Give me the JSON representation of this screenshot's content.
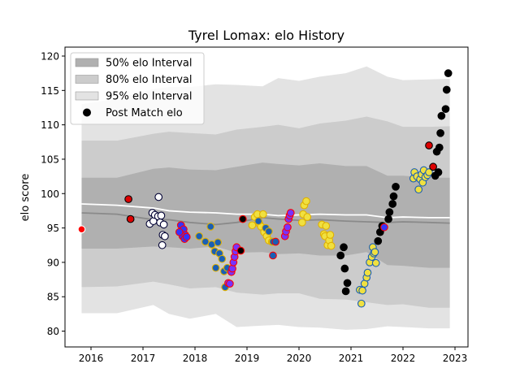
{
  "chart_data": {
    "type": "scatter",
    "title": "Tyrel Lomax: elo History",
    "xlabel": "",
    "ylabel": "elo score",
    "xlim": [
      2015.5,
      2023.25
    ],
    "ylim": [
      77.7,
      121.3
    ],
    "x_ticks": [
      2016,
      2017,
      2018,
      2019,
      2020,
      2021,
      2022,
      2023
    ],
    "y_ticks": [
      80,
      85,
      90,
      95,
      100,
      105,
      110,
      115,
      120
    ],
    "grid": false,
    "legend": {
      "placement": "top-left",
      "entries": [
        {
          "label": "50% elo Interval",
          "swatch": "band50"
        },
        {
          "label": "80% elo Interval",
          "swatch": "band80"
        },
        {
          "label": "95% elo Interval",
          "swatch": "band95"
        },
        {
          "label": "Post Match elo",
          "swatch": "dot"
        }
      ]
    },
    "colors": {
      "band95": "#e3e3e3",
      "band80": "#cccccc",
      "band50": "#b0b0b0",
      "mean_line": "#ffffff",
      "median_line": "#8a8a8a"
    },
    "bands": {
      "x": [
        2015.82,
        2016.5,
        2017.2,
        2017.5,
        2017.9,
        2018.4,
        2018.8,
        2019.3,
        2019.6,
        2020.0,
        2020.4,
        2020.9,
        2021.3,
        2021.7,
        2022.0,
        2022.5,
        2022.9
      ],
      "p95_hi": [
        113.0,
        113.8,
        115.2,
        115.5,
        115.5,
        115.9,
        115.8,
        115.6,
        116.8,
        116.4,
        117.0,
        117.5,
        118.5,
        117.0,
        116.5,
        116.6,
        116.7
      ],
      "p80_hi": [
        107.7,
        107.7,
        108.7,
        109.0,
        108.8,
        108.6,
        109.3,
        109.7,
        110.0,
        109.5,
        110.2,
        110.6,
        111.2,
        110.5,
        109.7,
        109.7,
        109.8
      ],
      "p50_hi": [
        102.3,
        102.3,
        103.6,
        103.8,
        103.5,
        103.4,
        103.9,
        104.5,
        104.3,
        104.1,
        104.4,
        104.0,
        104.0,
        102.6,
        102.6,
        102.3,
        102.3
      ],
      "p50_lo": [
        92.0,
        92.0,
        92.3,
        92.2,
        92.0,
        92.3,
        91.4,
        91.5,
        91.2,
        91.3,
        91.0,
        91.0,
        91.5,
        89.6,
        89.5,
        89.2,
        89.2
      ],
      "p80_lo": [
        86.4,
        86.5,
        87.2,
        86.8,
        86.2,
        86.4,
        85.6,
        85.3,
        85.5,
        85.5,
        84.7,
        84.6,
        84.2,
        83.8,
        83.9,
        83.4,
        83.4
      ],
      "p95_lo": [
        82.6,
        82.6,
        83.8,
        82.5,
        81.8,
        82.5,
        80.6,
        80.8,
        80.9,
        80.6,
        80.5,
        80.2,
        80.3,
        80.7,
        80.6,
        80.4,
        80.4
      ],
      "mean": [
        98.5,
        98.3,
        97.9,
        97.5,
        97.3,
        97.2,
        97.0,
        97.0,
        96.8,
        96.9,
        97.0,
        96.9,
        96.9,
        96.5,
        96.6,
        96.5,
        96.5
      ],
      "median": [
        97.2,
        97.0,
        96.2,
        96.2,
        95.8,
        95.5,
        95.8,
        96.5,
        96.3,
        96.1,
        96.2,
        96.0,
        95.9,
        95.8,
        95.9,
        95.8,
        95.7
      ]
    },
    "series": [
      {
        "fill": "#ff0000",
        "edge": "#ffffff",
        "points": [
          [
            2015.82,
            94.8
          ]
        ]
      },
      {
        "fill": "#dd0000",
        "edge": "#000000",
        "points": [
          [
            2016.72,
            99.2
          ],
          [
            2016.76,
            96.3
          ]
        ]
      },
      {
        "fill": "#ffffff",
        "edge": "#000033",
        "points": [
          [
            2017.3,
            99.5
          ],
          [
            2017.13,
            95.6
          ],
          [
            2017.2,
            96.0
          ],
          [
            2017.18,
            97.2
          ],
          [
            2017.23,
            96.9
          ],
          [
            2017.29,
            96.7
          ],
          [
            2017.35,
            96.8
          ],
          [
            2017.33,
            95.8
          ],
          [
            2017.4,
            95.5
          ],
          [
            2017.38,
            94.0
          ],
          [
            2017.42,
            93.8
          ],
          [
            2017.37,
            92.5
          ]
        ]
      },
      {
        "fill": "#3333ff",
        "edge": "#ff0000",
        "points": [
          [
            2017.73,
            95.4
          ],
          [
            2017.75,
            94.6
          ],
          [
            2017.78,
            94.8
          ],
          [
            2017.81,
            94.0
          ],
          [
            2017.76,
            93.8
          ],
          [
            2017.8,
            93.4
          ],
          [
            2017.84,
            93.7
          ],
          [
            2017.7,
            94.4
          ]
        ]
      },
      {
        "fill": "#1a5fb4",
        "edge": "#e0b000",
        "points": [
          [
            2018.08,
            93.8
          ],
          [
            2018.2,
            93.0
          ],
          [
            2018.3,
            95.2
          ],
          [
            2018.32,
            92.6
          ],
          [
            2018.38,
            91.6
          ],
          [
            2018.4,
            89.2
          ],
          [
            2018.44,
            92.9
          ],
          [
            2018.47,
            91.3
          ],
          [
            2018.52,
            90.5
          ],
          [
            2018.56,
            88.7
          ],
          [
            2018.58,
            86.4
          ],
          [
            2018.62,
            89.2
          ]
        ]
      },
      {
        "fill": "#7733ff",
        "edge": "#ff0000",
        "points": [
          [
            2018.64,
            87.0
          ],
          [
            2018.67,
            86.9
          ],
          [
            2018.7,
            88.6
          ],
          [
            2018.72,
            89.1
          ],
          [
            2018.74,
            90.0
          ],
          [
            2018.76,
            90.8
          ],
          [
            2018.78,
            91.6
          ],
          [
            2018.8,
            92.2
          ]
        ]
      },
      {
        "fill": "#000000",
        "edge": "#ff0000",
        "points": [
          [
            2018.88,
            91.7
          ],
          [
            2018.92,
            96.3
          ]
        ]
      },
      {
        "fill": "#f0e040",
        "edge": "#e0b000",
        "points": [
          [
            2019.1,
            95.4
          ],
          [
            2019.15,
            96.6
          ],
          [
            2019.2,
            97.0
          ],
          [
            2019.24,
            95.6
          ],
          [
            2019.27,
            95.2
          ],
          [
            2019.31,
            97.0
          ],
          [
            2019.33,
            94.4
          ],
          [
            2019.38,
            93.8
          ],
          [
            2019.42,
            93.2
          ],
          [
            2019.48,
            93.0
          ]
        ]
      },
      {
        "fill": "#1a5fb4",
        "edge": "#e0b000",
        "points": [
          [
            2019.22,
            96.0
          ],
          [
            2019.36,
            95.0
          ],
          [
            2019.42,
            94.5
          ],
          [
            2019.5,
            93.0
          ]
        ]
      },
      {
        "fill": "#1a5fb4",
        "edge": "#ff0000",
        "points": [
          [
            2019.5,
            91.0
          ],
          [
            2019.55,
            93.0
          ]
        ]
      },
      {
        "fill": "#7733ff",
        "edge": "#ff0000",
        "points": [
          [
            2019.73,
            93.8
          ],
          [
            2019.75,
            94.5
          ],
          [
            2019.78,
            95.1
          ],
          [
            2019.8,
            96.3
          ],
          [
            2019.82,
            96.8
          ],
          [
            2019.84,
            97.2
          ]
        ]
      },
      {
        "fill": "#f0e040",
        "edge": "#e0b000",
        "points": [
          [
            2020.06,
            95.8
          ],
          [
            2020.08,
            97.0
          ],
          [
            2020.1,
            98.3
          ],
          [
            2020.14,
            98.9
          ],
          [
            2020.16,
            96.6
          ],
          [
            2020.44,
            95.5
          ],
          [
            2020.48,
            94.1
          ],
          [
            2020.5,
            93.8
          ],
          [
            2020.52,
            95.3
          ],
          [
            2020.55,
            92.5
          ],
          [
            2020.58,
            93.2
          ],
          [
            2020.6,
            94.0
          ],
          [
            2020.62,
            92.4
          ]
        ]
      },
      {
        "fill": "#000000",
        "edge": "#000000",
        "points": [
          [
            2020.8,
            91.0
          ],
          [
            2020.86,
            92.2
          ],
          [
            2020.88,
            89.1
          ],
          [
            2020.9,
            85.8
          ],
          [
            2020.93,
            87.0
          ]
        ]
      },
      {
        "fill": "#f0e040",
        "edge": "#1a5fb4",
        "points": [
          [
            2021.17,
            86.0
          ],
          [
            2021.2,
            84.0
          ],
          [
            2021.22,
            85.9
          ],
          [
            2021.26,
            86.9
          ],
          [
            2021.3,
            87.8
          ],
          [
            2021.32,
            88.5
          ],
          [
            2021.36,
            90.0
          ],
          [
            2021.4,
            90.8
          ],
          [
            2021.44,
            91.3
          ],
          [
            2021.42,
            92.2
          ],
          [
            2021.46,
            91.5
          ],
          [
            2021.48,
            89.9
          ]
        ]
      },
      {
        "fill": "#000000",
        "edge": "#000000",
        "points": [
          [
            2021.52,
            93.1
          ],
          [
            2021.56,
            94.4
          ],
          [
            2021.6,
            95.3
          ],
          [
            2021.72,
            96.3
          ],
          [
            2021.74,
            97.3
          ],
          [
            2021.8,
            98.5
          ],
          [
            2021.82,
            99.6
          ],
          [
            2021.86,
            101.0
          ]
        ]
      },
      {
        "fill": "#3333ff",
        "edge": "#ff0000",
        "points": [
          [
            2021.64,
            95.1
          ]
        ]
      },
      {
        "fill": "#f0e040",
        "edge": "#1a5fb4",
        "points": [
          [
            2022.2,
            102.2
          ],
          [
            2022.22,
            103.1
          ],
          [
            2022.27,
            102.5
          ],
          [
            2022.3,
            100.6
          ],
          [
            2022.33,
            102.1
          ],
          [
            2022.38,
            101.6
          ],
          [
            2022.36,
            102.8
          ],
          [
            2022.4,
            103.4
          ],
          [
            2022.43,
            102.4
          ],
          [
            2022.47,
            102.7
          ],
          [
            2022.5,
            103.1
          ]
        ]
      },
      {
        "fill": "#dd0000",
        "edge": "#000000",
        "points": [
          [
            2022.5,
            107.0
          ],
          [
            2022.58,
            103.9
          ]
        ]
      },
      {
        "fill": "#000000",
        "edge": "#000000",
        "points": [
          [
            2022.62,
            102.6
          ],
          [
            2022.65,
            106.1
          ],
          [
            2022.68,
            103.1
          ],
          [
            2022.7,
            106.7
          ],
          [
            2022.72,
            108.8
          ],
          [
            2022.74,
            111.3
          ],
          [
            2022.82,
            112.3
          ],
          [
            2022.84,
            115.1
          ],
          [
            2022.87,
            117.5
          ]
        ]
      }
    ]
  }
}
